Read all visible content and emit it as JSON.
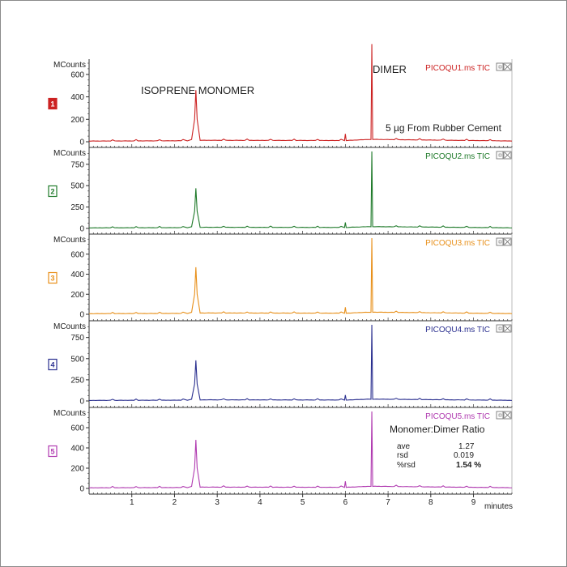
{
  "colors": {
    "axis": "#333333",
    "gray_text": "#222222",
    "icon": "#666666"
  },
  "x_axis": {
    "label": "minutes",
    "range": [
      0,
      9.9
    ],
    "ticks": [
      1,
      2,
      3,
      4,
      5,
      6,
      7,
      8,
      9
    ]
  },
  "chart_data": [
    {
      "type": "line",
      "panel": "1",
      "title": "PICOQU1.ms TIC",
      "color": "#cc2222",
      "ylabel": "MCounts",
      "ylim": [
        0,
        700
      ],
      "yticks": [
        0,
        200,
        400,
        600
      ],
      "x": [
        0,
        2.3,
        2.4,
        2.47,
        2.5,
        2.53,
        2.6,
        5.98,
        6.0,
        6.02,
        6.6,
        6.62,
        6.64,
        9.9
      ],
      "series": [
        {
          "values": [
            5,
            8,
            20,
            200,
            460,
            200,
            12,
            10,
            70,
            10,
            20,
            870,
            20,
            6
          ]
        }
      ]
    },
    {
      "type": "line",
      "panel": "2",
      "title": "PICOQU2.ms TIC",
      "color": "#1f7a2a",
      "ylabel": "MCounts",
      "ylim": [
        0,
        900
      ],
      "yticks": [
        0,
        250,
        500,
        750
      ],
      "x": [
        0,
        2.3,
        2.4,
        2.47,
        2.5,
        2.53,
        2.6,
        5.98,
        6.0,
        6.02,
        6.6,
        6.62,
        6.64,
        9.9
      ],
      "series": [
        {
          "values": [
            5,
            8,
            20,
            200,
            470,
            200,
            12,
            10,
            70,
            10,
            20,
            900,
            20,
            6
          ]
        }
      ]
    },
    {
      "type": "line",
      "panel": "3",
      "title": "PICOQU3.ms TIC",
      "color": "#e8901a",
      "ylabel": "MCounts",
      "ylim": [
        0,
        760
      ],
      "yticks": [
        0,
        200,
        400,
        600
      ],
      "x": [
        0,
        2.3,
        2.4,
        2.47,
        2.5,
        2.53,
        2.6,
        5.98,
        6.0,
        6.02,
        6.6,
        6.62,
        6.64,
        9.9
      ],
      "series": [
        {
          "values": [
            5,
            8,
            20,
            200,
            470,
            200,
            12,
            10,
            70,
            10,
            20,
            760,
            20,
            6
          ]
        }
      ]
    },
    {
      "type": "line",
      "panel": "4",
      "title": "PICOQU4.ms TIC",
      "color": "#2a2f8f",
      "ylabel": "MCounts",
      "ylim": [
        0,
        900
      ],
      "yticks": [
        0,
        250,
        500,
        750
      ],
      "x": [
        0,
        2.3,
        2.4,
        2.47,
        2.5,
        2.53,
        2.6,
        5.98,
        6.0,
        6.02,
        6.6,
        6.62,
        6.64,
        9.9
      ],
      "series": [
        {
          "values": [
            5,
            8,
            20,
            200,
            480,
            200,
            12,
            10,
            70,
            10,
            20,
            900,
            20,
            6
          ]
        }
      ]
    },
    {
      "type": "line",
      "panel": "5",
      "title": "PICOQU5.ms TIC",
      "color": "#b03ab0",
      "ylabel": "MCounts",
      "ylim": [
        0,
        760
      ],
      "yticks": [
        0,
        200,
        400,
        600
      ],
      "x": [
        0,
        2.3,
        2.4,
        2.47,
        2.5,
        2.53,
        2.6,
        5.98,
        6.0,
        6.02,
        6.6,
        6.62,
        6.64,
        9.9
      ],
      "series": [
        {
          "values": [
            5,
            8,
            20,
            200,
            480,
            200,
            12,
            10,
            70,
            10,
            20,
            760,
            20,
            6
          ]
        }
      ]
    }
  ],
  "annotations": {
    "monomer": "ISOPRENE MONOMER",
    "dimer": "DIMER",
    "sample": "5 µg  From Rubber Cement",
    "ratio_title": "Monomer:Dimer Ratio",
    "stats": [
      {
        "label": "ave",
        "value": "1.27"
      },
      {
        "label": "rsd",
        "value": "0.019"
      },
      {
        "label": "%rsd",
        "value": "1.54 %"
      }
    ]
  }
}
